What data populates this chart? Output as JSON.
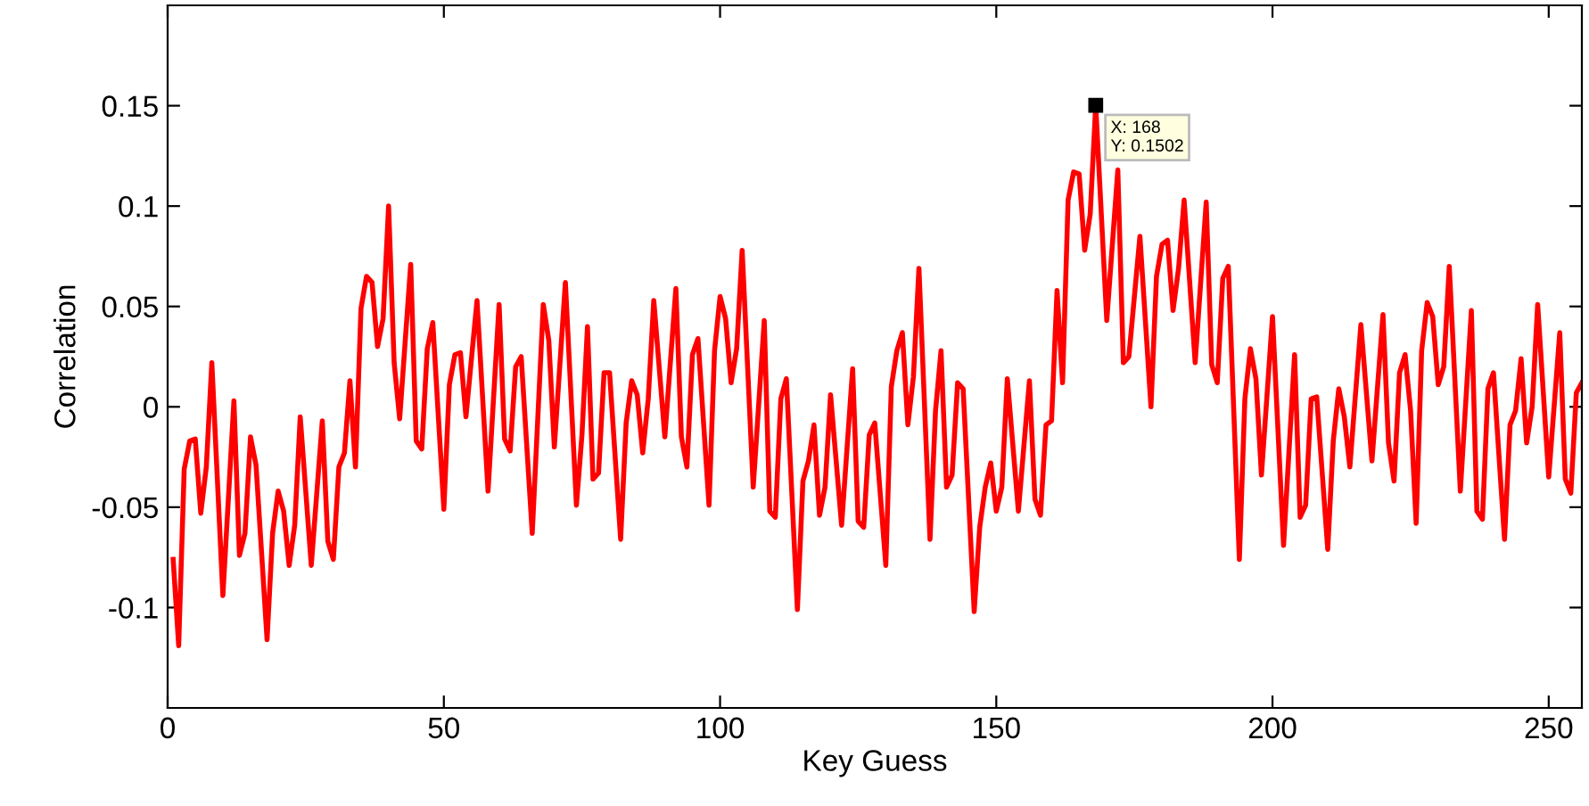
{
  "chart_data": {
    "type": "line",
    "xlabel": "Key Guess",
    "ylabel": "Correlation",
    "xlim": [
      0,
      256
    ],
    "ylim": [
      -0.15,
      0.2
    ],
    "xticks": [
      0,
      50,
      100,
      150,
      200,
      250
    ],
    "yticks": [
      -0.1,
      -0.05,
      0,
      0.05,
      0.1,
      0.15
    ],
    "grid": false,
    "marker": "none",
    "line_style": "solid",
    "annotations": [
      {
        "text": "X: 168\nY: 0.1502",
        "x": 168,
        "y": 0.1502
      }
    ],
    "series": [
      {
        "color": "#ff0000",
        "x": [
          1,
          2,
          3,
          4,
          5,
          6,
          7,
          8,
          10,
          12,
          13,
          14,
          15,
          16,
          18,
          19,
          20,
          21,
          22,
          23,
          24,
          26,
          28,
          29,
          30,
          31,
          32,
          33,
          34,
          35,
          36,
          37,
          38,
          39,
          40,
          41,
          42,
          44,
          45,
          46,
          47,
          48,
          50,
          51,
          52,
          53,
          54,
          56,
          58,
          60,
          61,
          62,
          63,
          64,
          66,
          68,
          69,
          70,
          72,
          74,
          75,
          76,
          77,
          78,
          79,
          80,
          82,
          83,
          84,
          85,
          86,
          87,
          88,
          90,
          92,
          93,
          94,
          95,
          96,
          98,
          99,
          100,
          101,
          102,
          103,
          104,
          106,
          108,
          109,
          110,
          111,
          112,
          114,
          115,
          116,
          117,
          118,
          119,
          120,
          122,
          124,
          125,
          126,
          127,
          128,
          130,
          131,
          132,
          133,
          134,
          135,
          136,
          138,
          139,
          140,
          141,
          142,
          143,
          144,
          146,
          147,
          148,
          149,
          150,
          151,
          152,
          154,
          156,
          157,
          158,
          159,
          160,
          161,
          162,
          163,
          164,
          165,
          166,
          167,
          168,
          170,
          172,
          173,
          174,
          176,
          178,
          179,
          180,
          181,
          182,
          183,
          184,
          186,
          188,
          189,
          190,
          191,
          192,
          194,
          195,
          196,
          197,
          198,
          200,
          202,
          204,
          205,
          206,
          207,
          208,
          210,
          211,
          212,
          213,
          214,
          216,
          218,
          220,
          221,
          222,
          223,
          224,
          225,
          226,
          227,
          228,
          229,
          230,
          231,
          232,
          234,
          236,
          237,
          238,
          239,
          240,
          242,
          243,
          244,
          245,
          246,
          247,
          248,
          250,
          252,
          253,
          254,
          255,
          256
        ],
        "values": [
          -0.076,
          -0.119,
          -0.031,
          -0.017,
          -0.016,
          -0.053,
          -0.03,
          0.022,
          -0.094,
          0.003,
          -0.074,
          -0.063,
          -0.015,
          -0.029,
          -0.116,
          -0.063,
          -0.042,
          -0.052,
          -0.079,
          -0.059,
          -0.005,
          -0.079,
          -0.007,
          -0.067,
          -0.076,
          -0.03,
          -0.023,
          0.013,
          -0.03,
          0.049,
          0.065,
          0.062,
          0.03,
          0.044,
          0.1,
          0.022,
          -0.006,
          0.071,
          -0.017,
          -0.021,
          0.029,
          0.042,
          -0.051,
          0.011,
          0.026,
          0.027,
          -0.005,
          0.053,
          -0.042,
          0.051,
          -0.016,
          -0.022,
          0.02,
          0.025,
          -0.063,
          0.051,
          0.033,
          -0.02,
          0.062,
          -0.049,
          -0.014,
          0.04,
          -0.036,
          -0.033,
          0.017,
          0.017,
          -0.066,
          -0.008,
          0.013,
          0.006,
          -0.023,
          0.004,
          0.053,
          -0.015,
          0.059,
          -0.015,
          -0.03,
          0.026,
          0.034,
          -0.049,
          0.028,
          0.055,
          0.044,
          0.012,
          0.029,
          0.078,
          -0.04,
          0.043,
          -0.052,
          -0.055,
          0.004,
          0.014,
          -0.101,
          -0.037,
          -0.027,
          -0.009,
          -0.054,
          -0.04,
          0.006,
          -0.059,
          0.019,
          -0.057,
          -0.06,
          -0.014,
          -0.008,
          -0.079,
          0.01,
          0.028,
          0.037,
          -0.009,
          0.015,
          0.069,
          -0.066,
          -0.002,
          0.028,
          -0.04,
          -0.034,
          0.012,
          0.009,
          -0.102,
          -0.06,
          -0.04,
          -0.028,
          -0.052,
          -0.04,
          0.014,
          -0.052,
          0.013,
          -0.046,
          -0.054,
          -0.009,
          -0.007,
          0.058,
          0.012,
          0.103,
          0.117,
          0.116,
          0.078,
          0.096,
          0.1502,
          0.043,
          0.118,
          0.022,
          0.025,
          0.085,
          0.0,
          0.065,
          0.081,
          0.083,
          0.048,
          0.069,
          0.103,
          0.022,
          0.102,
          0.021,
          0.012,
          0.064,
          0.07,
          -0.076,
          0.004,
          0.029,
          0.014,
          -0.034,
          0.045,
          -0.069,
          0.026,
          -0.055,
          -0.049,
          0.004,
          0.005,
          -0.071,
          -0.017,
          0.009,
          -0.005,
          -0.03,
          0.041,
          -0.027,
          0.046,
          -0.018,
          -0.037,
          0.017,
          0.026,
          -0.002,
          -0.058,
          0.028,
          0.052,
          0.045,
          0.011,
          0.02,
          0.07,
          -0.042,
          0.048,
          -0.052,
          -0.056,
          0.009,
          0.017,
          -0.066,
          -0.009,
          -0.002,
          0.024,
          -0.018,
          0.0,
          0.051,
          -0.035,
          0.037,
          -0.036,
          -0.043,
          0.007,
          0.012
        ]
      }
    ]
  }
}
